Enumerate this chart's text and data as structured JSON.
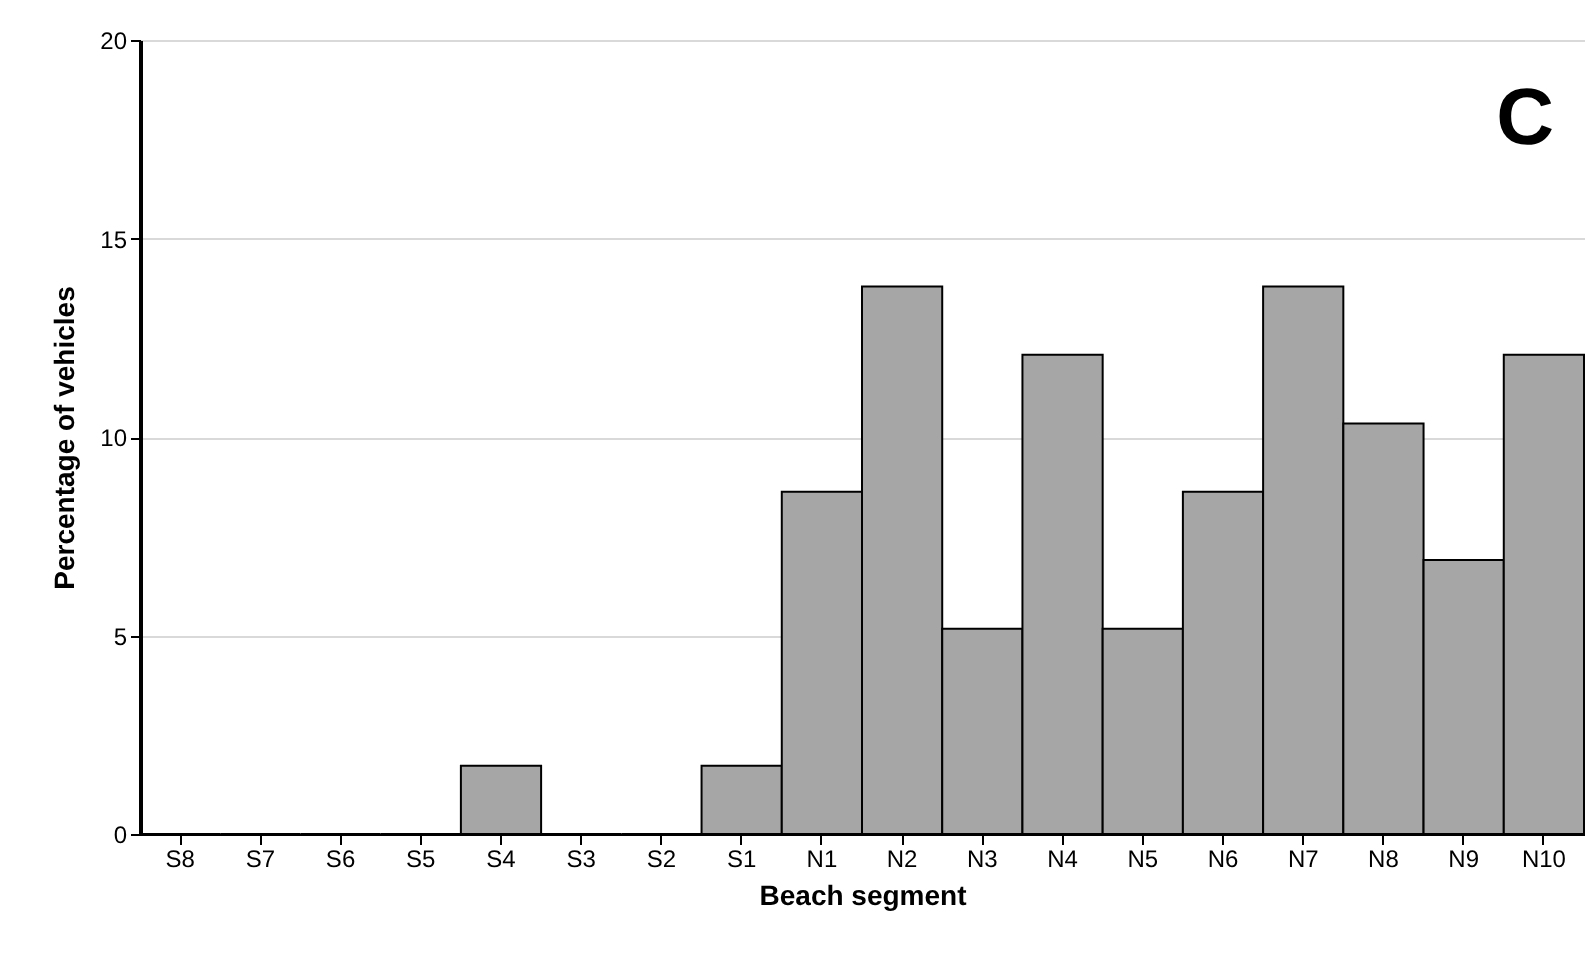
{
  "chart_data": {
    "type": "bar",
    "xlabel": "Beach segment",
    "ylabel": "Percentage of vehicles",
    "annotations": [
      "C"
    ],
    "categories": [
      "S8",
      "S7",
      "S6",
      "S5",
      "S4",
      "S3",
      "S2",
      "S1",
      "N1",
      "N2",
      "N3",
      "N4",
      "N5",
      "N6",
      "N7",
      "N8",
      "N9",
      "N10"
    ],
    "values": [
      0,
      0,
      0,
      0,
      1.72,
      0,
      0,
      1.72,
      8.62,
      13.79,
      5.17,
      12.07,
      5.17,
      8.62,
      13.79,
      10.34,
      6.9,
      12.07
    ],
    "color": "#a6a6a6",
    "ylim": [
      0,
      20
    ],
    "yticks": [
      0,
      5,
      10,
      15,
      20
    ],
    "grid": "y"
  }
}
